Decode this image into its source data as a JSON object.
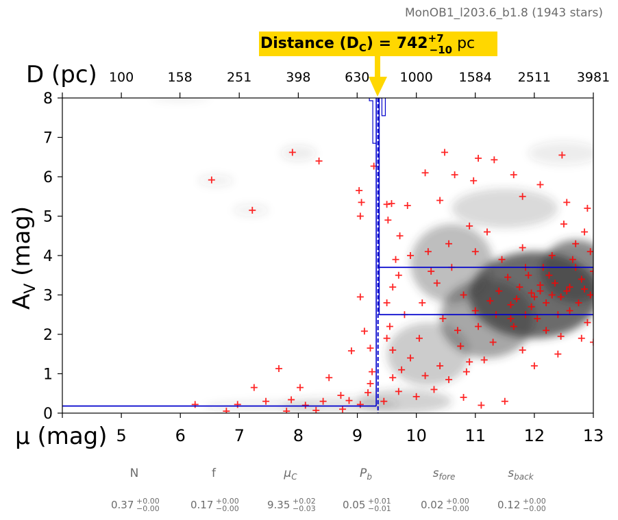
{
  "source_title": "MonOB1_l203.6_b1.8 (1943 stars)",
  "distance_label": {
    "prefix": "Distance (D",
    "sub": "C",
    "mid": ") = ",
    "value": "742",
    "plus": "+7",
    "minus": "−10",
    "unit": " pc"
  },
  "colors": {
    "points": "#ff0000",
    "model": "#0000cc",
    "highlight": "#ffd700",
    "density": "#3a3a3a"
  },
  "chart_data": {
    "type": "scatter",
    "xlabel_mu": "μ (mag)",
    "xlabel_d": "D (pc)",
    "ylabel_main": "A",
    "ylabel_sub": "V",
    "ylabel_tail": " (mag)",
    "xlim": [
      4,
      13
    ],
    "ylim": [
      0,
      8
    ],
    "x_ticks": [
      5,
      6,
      7,
      8,
      9,
      10,
      11,
      12,
      13
    ],
    "x_tick_labels": [
      "5",
      "6",
      "7",
      "8",
      "9",
      "10",
      "11",
      "12",
      "13"
    ],
    "top_ticks": [
      100,
      158,
      251,
      398,
      630,
      1000,
      1584,
      2511,
      3981
    ],
    "top_tick_labels": [
      "100",
      "158",
      "251",
      "398",
      "630",
      "1000",
      "1584",
      "2511",
      "3981"
    ],
    "y_ticks": [
      0,
      1,
      2,
      3,
      4,
      5,
      6,
      7,
      8
    ],
    "y_tick_labels": [
      "0",
      "1",
      "2",
      "3",
      "4",
      "5",
      "6",
      "7",
      "8"
    ],
    "n_stars": 1943,
    "model": {
      "mu_cloud": 9.35,
      "av_foreground": 0.18,
      "av_background_low": 2.5,
      "av_background_high": 3.7,
      "mu_band": [
        9.32,
        9.37
      ]
    },
    "density_blobs": [
      {
        "mu": 12.0,
        "av": 3.0,
        "sx": 1.1,
        "sy": 1.1,
        "w": 1.0
      },
      {
        "mu": 12.7,
        "av": 3.6,
        "sx": 0.6,
        "sy": 0.8,
        "w": 0.8
      },
      {
        "mu": 11.2,
        "av": 2.4,
        "sx": 0.8,
        "sy": 1.0,
        "w": 0.6
      },
      {
        "mu": 10.6,
        "av": 3.8,
        "sx": 0.7,
        "sy": 1.0,
        "w": 0.45
      },
      {
        "mu": 10.2,
        "av": 1.5,
        "sx": 0.7,
        "sy": 0.8,
        "w": 0.35
      },
      {
        "mu": 9.8,
        "av": 0.3,
        "sx": 0.8,
        "sy": 0.3,
        "w": 0.3
      },
      {
        "mu": 8.7,
        "av": 0.2,
        "sx": 1.0,
        "sy": 0.2,
        "w": 0.2
      },
      {
        "mu": 7.4,
        "av": 0.15,
        "sx": 1.0,
        "sy": 0.15,
        "w": 0.12
      },
      {
        "mu": 11.5,
        "av": 5.2,
        "sx": 0.9,
        "sy": 0.5,
        "w": 0.25
      },
      {
        "mu": 12.5,
        "av": 6.6,
        "sx": 0.6,
        "sy": 0.3,
        "w": 0.12
      },
      {
        "mu": 8.0,
        "av": 6.6,
        "sx": 0.3,
        "sy": 0.2,
        "w": 0.12
      },
      {
        "mu": 6.6,
        "av": 5.9,
        "sx": 0.3,
        "sy": 0.15,
        "w": 0.1
      },
      {
        "mu": 7.2,
        "av": 5.15,
        "sx": 0.3,
        "sy": 0.15,
        "w": 0.1
      },
      {
        "mu": 6.0,
        "av": 8.0,
        "sx": 0.5,
        "sy": 0.1,
        "w": 0.08
      }
    ],
    "points": [
      [
        6.53,
        5.92
      ],
      [
        7.22,
        5.15
      ],
      [
        7.9,
        6.62
      ],
      [
        8.35,
        6.4
      ],
      [
        7.67,
        1.13
      ],
      [
        7.25,
        0.65
      ],
      [
        8.03,
        0.65
      ],
      [
        8.52,
        0.9
      ],
      [
        6.25,
        0.22
      ],
      [
        6.97,
        0.22
      ],
      [
        7.45,
        0.3
      ],
      [
        7.88,
        0.34
      ],
      [
        8.12,
        0.2
      ],
      [
        8.42,
        0.3
      ],
      [
        8.72,
        0.45
      ],
      [
        8.86,
        0.32
      ],
      [
        9.05,
        0.22
      ],
      [
        9.18,
        0.52
      ],
      [
        9.22,
        0.75
      ],
      [
        9.25,
        1.05
      ],
      [
        9.12,
        2.08
      ],
      [
        9.05,
        2.95
      ],
      [
        9.03,
        5.65
      ],
      [
        9.07,
        5.35
      ],
      [
        9.05,
        5.0
      ],
      [
        9.28,
        6.27
      ],
      [
        9.22,
        1.65
      ],
      [
        8.9,
        1.58
      ],
      [
        6.78,
        0.05
      ],
      [
        7.8,
        0.05
      ],
      [
        8.3,
        0.07
      ],
      [
        8.75,
        0.1
      ],
      [
        10.48,
        6.62
      ],
      [
        11.05,
        6.47
      ],
      [
        10.65,
        6.05
      ],
      [
        10.97,
        5.9
      ],
      [
        12.47,
        6.55
      ],
      [
        11.65,
        6.05
      ],
      [
        11.32,
        6.43
      ],
      [
        10.15,
        6.1
      ],
      [
        9.58,
        5.32
      ],
      [
        9.85,
        5.27
      ],
      [
        10.4,
        5.4
      ],
      [
        11.8,
        5.5
      ],
      [
        12.1,
        5.8
      ],
      [
        12.9,
        5.2
      ],
      [
        12.55,
        5.35
      ],
      [
        9.65,
        3.9
      ],
      [
        9.72,
        4.5
      ],
      [
        9.9,
        4.0
      ],
      [
        9.6,
        3.2
      ],
      [
        9.55,
        2.2
      ],
      [
        9.6,
        1.6
      ],
      [
        9.75,
        1.1
      ],
      [
        9.7,
        0.55
      ],
      [
        10.0,
        0.42
      ],
      [
        10.3,
        0.6
      ],
      [
        10.55,
        0.85
      ],
      [
        10.8,
        0.4
      ],
      [
        11.1,
        0.2
      ],
      [
        11.5,
        0.3
      ],
      [
        12.0,
        1.2
      ],
      [
        12.4,
        1.5
      ],
      [
        12.8,
        1.9
      ],
      [
        13.0,
        1.8
      ],
      [
        10.1,
        2.8
      ],
      [
        10.35,
        3.3
      ],
      [
        10.7,
        2.1
      ],
      [
        10.9,
        1.3
      ],
      [
        11.3,
        1.8
      ],
      [
        11.6,
        2.4
      ],
      [
        12.2,
        2.1
      ],
      [
        12.6,
        2.6
      ],
      [
        12.95,
        3.0
      ],
      [
        13.0,
        3.6
      ],
      [
        12.7,
        4.3
      ],
      [
        12.3,
        4.0
      ],
      [
        11.9,
        3.5
      ],
      [
        11.4,
        3.1
      ],
      [
        11.0,
        2.6
      ],
      [
        10.6,
        3.7
      ],
      [
        10.2,
        4.1
      ],
      [
        11.2,
        4.6
      ],
      [
        11.8,
        4.2
      ],
      [
        12.5,
        4.8
      ],
      [
        12.85,
        4.6
      ],
      [
        12.9,
        2.3
      ],
      [
        12.1,
        3.1
      ],
      [
        11.7,
        2.9
      ],
      [
        11.95,
        2.7
      ],
      [
        12.35,
        3.3
      ],
      [
        12.6,
        3.2
      ],
      [
        12.8,
        3.4
      ],
      [
        11.55,
        3.45
      ],
      [
        11.25,
        2.85
      ],
      [
        10.8,
        3.0
      ],
      [
        10.45,
        2.4
      ],
      [
        10.05,
        1.9
      ],
      [
        9.8,
        2.5
      ],
      [
        9.7,
        3.5
      ],
      [
        10.25,
        3.6
      ],
      [
        10.55,
        4.3
      ],
      [
        11.0,
        4.1
      ],
      [
        11.45,
        3.9
      ],
      [
        11.85,
        3.7
      ],
      [
        12.25,
        3.5
      ],
      [
        12.65,
        3.9
      ],
      [
        12.95,
        4.1
      ],
      [
        12.75,
        2.8
      ],
      [
        12.4,
        2.5
      ],
      [
        12.05,
        2.4
      ],
      [
        11.65,
        2.2
      ],
      [
        11.35,
        2.5
      ],
      [
        11.05,
        2.2
      ],
      [
        10.75,
        1.7
      ],
      [
        10.4,
        1.2
      ],
      [
        10.15,
        0.95
      ],
      [
        9.9,
        1.4
      ],
      [
        9.6,
        0.9
      ],
      [
        9.45,
        0.3
      ],
      [
        9.5,
        1.9
      ],
      [
        9.5,
        2.8
      ],
      [
        9.52,
        4.9
      ],
      [
        9.5,
        5.3
      ],
      [
        10.9,
        4.75
      ],
      [
        10.85,
        1.05
      ],
      [
        11.15,
        1.35
      ],
      [
        11.8,
        1.6
      ],
      [
        12.45,
        1.95
      ],
      [
        12.2,
        2.8
      ],
      [
        11.95,
        3.05
      ],
      [
        12.1,
        3.25
      ],
      [
        12.3,
        3.0
      ],
      [
        12.55,
        3.1
      ],
      [
        12.45,
        2.95
      ],
      [
        11.75,
        3.2
      ],
      [
        11.6,
        2.75
      ],
      [
        12.85,
        3.15
      ],
      [
        12.7,
        3.7
      ],
      [
        12.15,
        3.7
      ],
      [
        11.85,
        2.5
      ],
      [
        12.0,
        2.95
      ]
    ]
  },
  "params": [
    {
      "name": "N",
      "value": "0.37",
      "sup": "+0.00",
      "sub": "−0.00"
    },
    {
      "name": "f",
      "value": "0.17",
      "sup": "+0.00",
      "sub": "−0.00"
    },
    {
      "name": "μ",
      "name_sub": "C",
      "value": "9.35",
      "sup": "+0.02",
      "sub": "−0.03"
    },
    {
      "name": "P",
      "name_sub": "b",
      "value": "0.05",
      "sup": "+0.01",
      "sub": "−0.01"
    },
    {
      "name": "s",
      "name_sub": "fore",
      "value": "0.02",
      "sup": "+0.00",
      "sub": "−0.00"
    },
    {
      "name": "s",
      "name_sub": "back",
      "value": "0.12",
      "sup": "+0.00",
      "sub": "−0.00"
    }
  ]
}
